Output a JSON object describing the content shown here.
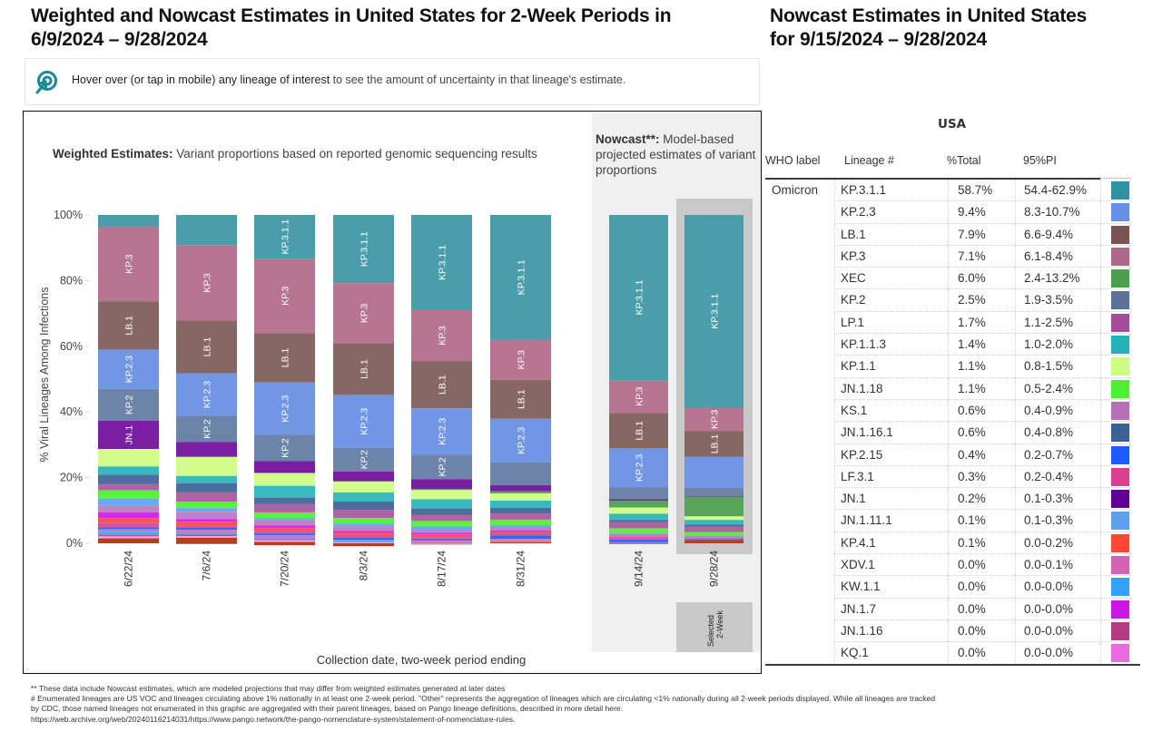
{
  "header": {
    "title_line1": "Weighted and Nowcast Estimates in United States for 2-Week Periods in",
    "title_line2": "6/9/2024 – 9/28/2024",
    "right_title_line1": "Nowcast Estimates in United States",
    "right_title_line2": "for 9/15/2024 – 9/28/2024"
  },
  "info": {
    "icon": "hover-target-icon",
    "bold_text": "Hover over (or tap in mobile) any lineage of interest",
    "text": " to see the amount of uncertainty in that lineage's estimate."
  },
  "panels": {
    "weighted_bold": "Weighted Estimates:",
    "weighted_text": " Variant proportions based on reported genomic sequencing results",
    "nowcast_bold": "Nowcast**:",
    "nowcast_text": " Model-based projected estimates of variant proportions",
    "selected_label_line1": "Selected",
    "selected_label_line2": "2-Week"
  },
  "colors": {
    "KP.3.1.1": "#4a9dab",
    "KP.3": "#b87591",
    "LB.1": "#866763",
    "KP.2.3": "#7196e6",
    "KP.2": "#6b84a8",
    "JN.1": "#7a1fa3",
    "XEC": "#57a55a",
    "KP.1.1": "#d2fc8c",
    "KP.1.1.3": "#38b9be",
    "JN.1.16.1": "#4a6e9e",
    "LP.1": "#ae64a0",
    "JN.1.18": "#5bf23f",
    "JN.1.11.1": "#6ba8ee",
    "KS.1": "#bf82c4",
    "JN.1.7": "#d62ae8",
    "KP.4.1": "#ff5548",
    "LF.3.1": "#e0509a",
    "KP.2.15": "#2e68ff",
    "XDV.1": "#d675b8",
    "KW.1.1": "#48aaff",
    "JN.1.16": "#c04f8c",
    "KQ.1": "#f0a8e8",
    "Other": "#b2401c"
  },
  "chart_data": {
    "type": "bar",
    "stacked": true,
    "title": "Weighted and Nowcast Estimates in United States for 2-Week Periods in 6/9/2024 – 9/28/2024",
    "xlabel": "Collection date, two-week period ending",
    "ylabel": "% Viral Lineages Among Infections",
    "ylim": [
      0,
      100
    ],
    "yticks": [
      "0%",
      "20%",
      "40%",
      "60%",
      "80%",
      "100%"
    ],
    "ytick_values": [
      0,
      20,
      40,
      60,
      80,
      100
    ],
    "stack_order": [
      "KP.3.1.1",
      "KP.3",
      "LB.1",
      "KP.2.3",
      "KP.2",
      "JN.1",
      "XEC",
      "KP.1.1",
      "KP.1.1.3",
      "JN.1.16.1",
      "LP.1",
      "JN.1.18",
      "JN.1.11.1",
      "KS.1",
      "JN.1.7",
      "KP.4.1",
      "LF.3.1",
      "KP.2.15",
      "XDV.1",
      "KW.1.1",
      "JN.1.16",
      "KQ.1",
      "Other"
    ],
    "categories": [
      "6/22/24",
      "7/6/24",
      "7/20/24",
      "8/3/24",
      "8/17/24",
      "8/31/24",
      "9/14/24",
      "9/28/24"
    ],
    "category_group": [
      "weighted",
      "weighted",
      "weighted",
      "weighted",
      "weighted",
      "weighted",
      "nowcast",
      "nowcast"
    ],
    "selected_category": "9/28/24",
    "segment_labels": [
      [
        "KP.3",
        "LB.1",
        "KP.2.3",
        "KP.2",
        "JN.1"
      ],
      [
        "KP.3",
        "LB.1",
        "KP.2.3",
        "KP.2"
      ],
      [
        "KP.3.1.1",
        "KP.3",
        "LB.1",
        "KP.2.3",
        "KP.2"
      ],
      [
        "KP.3.1.1",
        "KP.3",
        "LB.1",
        "KP.2.3",
        "KP.2"
      ],
      [
        "KP.3.1.1",
        "KP.3",
        "LB.1",
        "KP.2.3",
        "KP.2"
      ],
      [
        "KP.3.1.1",
        "KP.3",
        "LB.1",
        "KP.2.3"
      ],
      [
        "KP.3.1.1",
        "KP.3",
        "LB.1",
        "KP.2.3"
      ],
      [
        "KP.3.1.1",
        "KP.3",
        "LB.1"
      ]
    ],
    "series": [
      {
        "name": "KP.3.1.1",
        "values": [
          3.6,
          9.2,
          13.3,
          20.8,
          29.0,
          38.0,
          50.3,
          58.7
        ]
      },
      {
        "name": "KP.3",
        "values": [
          22.7,
          23.0,
          22.7,
          18.3,
          15.5,
          12.2,
          10.0,
          7.1
        ]
      },
      {
        "name": "LB.1",
        "values": [
          14.7,
          16.0,
          15.0,
          15.8,
          14.4,
          11.9,
          10.8,
          7.9
        ]
      },
      {
        "name": "KP.2.3",
        "values": [
          12.0,
          13.0,
          16.0,
          16.0,
          14.1,
          13.3,
          11.9,
          9.4
        ]
      },
      {
        "name": "KP.2",
        "values": [
          9.7,
          8.0,
          8.0,
          7.2,
          7.5,
          6.9,
          3.6,
          2.5
        ]
      },
      {
        "name": "JN.1",
        "values": [
          8.6,
          4.5,
          3.6,
          3.0,
          3.0,
          1.9,
          0.5,
          0.2
        ]
      },
      {
        "name": "XEC",
        "values": [
          0.0,
          0.0,
          0.0,
          0.1,
          0.3,
          0.6,
          2.0,
          6.0
        ]
      },
      {
        "name": "KP.1.1",
        "values": [
          5.3,
          5.8,
          3.9,
          3.3,
          2.8,
          2.2,
          1.9,
          1.1
        ]
      },
      {
        "name": "KP.1.1.3",
        "values": [
          2.5,
          2.2,
          3.6,
          2.8,
          2.8,
          2.2,
          1.9,
          1.4
        ]
      },
      {
        "name": "JN.1.16.1",
        "values": [
          2.8,
          2.8,
          2.0,
          2.5,
          1.9,
          1.7,
          0.6,
          0.6
        ]
      },
      {
        "name": "LP.1",
        "values": [
          2.0,
          2.8,
          2.5,
          2.5,
          1.9,
          1.9,
          2.0,
          1.7
        ]
      },
      {
        "name": "JN.1.18",
        "values": [
          2.5,
          2.0,
          1.7,
          1.7,
          1.7,
          1.7,
          1.4,
          1.1
        ]
      },
      {
        "name": "JN.1.11.1",
        "values": [
          2.2,
          1.1,
          0.6,
          0.8,
          1.1,
          0.8,
          0.3,
          0.1
        ]
      },
      {
        "name": "KS.1",
        "values": [
          2.0,
          2.2,
          1.7,
          1.4,
          0.8,
          0.8,
          0.8,
          0.6
        ]
      },
      {
        "name": "JN.1.7",
        "values": [
          1.7,
          0.8,
          0.8,
          0.5,
          0.5,
          0.5,
          0.2,
          0.0
        ]
      },
      {
        "name": "KP.4.1",
        "values": [
          1.4,
          1.1,
          0.8,
          0.8,
          0.8,
          0.5,
          0.2,
          0.1
        ]
      },
      {
        "name": "LF.3.1",
        "values": [
          1.4,
          0.8,
          0.8,
          0.8,
          0.6,
          0.5,
          0.4,
          0.3
        ]
      },
      {
        "name": "KP.2.15",
        "values": [
          0.6,
          0.6,
          0.6,
          0.6,
          0.5,
          1.1,
          0.9,
          0.4
        ]
      },
      {
        "name": "XDV.1",
        "values": [
          0.8,
          0.8,
          0.6,
          0.3,
          0.3,
          0.3,
          0.1,
          0.0
        ]
      },
      {
        "name": "KW.1.1",
        "values": [
          1.0,
          0.6,
          0.5,
          0.3,
          0.3,
          0.2,
          0.1,
          0.0
        ]
      },
      {
        "name": "JN.1.16",
        "values": [
          0.4,
          0.5,
          0.4,
          0.2,
          0.2,
          0.2,
          0.1,
          0.0
        ]
      },
      {
        "name": "KQ.1",
        "values": [
          0.6,
          0.5,
          0.5,
          0.3,
          0.2,
          0.2,
          0.1,
          0.0
        ]
      },
      {
        "name": "Other",
        "values": [
          1.5,
          1.9,
          1.0,
          0.9,
          0.1,
          0.4,
          0.1,
          0.8
        ]
      }
    ]
  },
  "table": {
    "region": "USA",
    "headers": {
      "who": "WHO label",
      "lineage": "Lineage #",
      "pct": "%Total",
      "pi": "95%PI"
    },
    "who_label": "Omicron",
    "rows": [
      {
        "lineage": "KP.3.1.1",
        "pct": "58.7%",
        "pi": "54.4-62.9%",
        "color": "#2e93a0"
      },
      {
        "lineage": "KP.2.3",
        "pct": "9.4%",
        "pi": "8.3-10.7%",
        "color": "#6890e8"
      },
      {
        "lineage": "LB.1",
        "pct": "7.9%",
        "pi": "6.6-9.4%",
        "color": "#7a5352"
      },
      {
        "lineage": "KP.3",
        "pct": "7.1%",
        "pi": "6.1-8.4%",
        "color": "#b0668a"
      },
      {
        "lineage": "XEC",
        "pct": "6.0%",
        "pi": "2.4-13.2%",
        "color": "#4aa04c"
      },
      {
        "lineage": "KP.2",
        "pct": "2.5%",
        "pi": "1.9-3.5%",
        "color": "#5a729c"
      },
      {
        "lineage": "LP.1",
        "pct": "1.7%",
        "pi": "1.1-2.5%",
        "color": "#a24f98"
      },
      {
        "lineage": "KP.1.1.3",
        "pct": "1.4%",
        "pi": "1.0-2.0%",
        "color": "#22b3b8"
      },
      {
        "lineage": "KP.1.1",
        "pct": "1.1%",
        "pi": "0.8-1.5%",
        "color": "#ccff80"
      },
      {
        "lineage": "JN.1.18",
        "pct": "1.1%",
        "pi": "0.5-2.4%",
        "color": "#4ef032"
      },
      {
        "lineage": "KS.1",
        "pct": "0.6%",
        "pi": "0.4-0.9%",
        "color": "#b670b8"
      },
      {
        "lineage": "JN.1.16.1",
        "pct": "0.6%",
        "pi": "0.4-0.8%",
        "color": "#3a6094"
      },
      {
        "lineage": "KP.2.15",
        "pct": "0.4%",
        "pi": "0.2-0.7%",
        "color": "#1a5cff"
      },
      {
        "lineage": "LF.3.1",
        "pct": "0.3%",
        "pi": "0.2-0.4%",
        "color": "#d8408f"
      },
      {
        "lineage": "JN.1",
        "pct": "0.2%",
        "pi": "0.1-0.3%",
        "color": "#5e0096"
      },
      {
        "lineage": "JN.1.11.1",
        "pct": "0.1%",
        "pi": "0.1-0.3%",
        "color": "#5ea0ee"
      },
      {
        "lineage": "KP.4.1",
        "pct": "0.1%",
        "pi": "0.0-0.2%",
        "color": "#ff4536"
      },
      {
        "lineage": "XDV.1",
        "pct": "0.0%",
        "pi": "0.0-0.1%",
        "color": "#d064b0"
      },
      {
        "lineage": "KW.1.1",
        "pct": "0.0%",
        "pi": "0.0-0.0%",
        "color": "#32a0ff"
      },
      {
        "lineage": "JN.1.7",
        "pct": "0.0%",
        "pi": "0.0-0.0%",
        "color": "#cc16e6"
      },
      {
        "lineage": "JN.1.16",
        "pct": "0.0%",
        "pi": "0.0-0.0%",
        "color": "#b43a82"
      },
      {
        "lineage": "KQ.1",
        "pct": "0.0%",
        "pi": "0.0-0.0%",
        "color": "#e86ce0"
      }
    ]
  },
  "footnotes": [
    "**     These data include Nowcast estimates, which are modeled projections that may differ from weighted estimates generated at later dates",
    "# Enumerated lineages are US VOC and lineages circulating above 1% nationally in at least one 2-week period. \"Other\" represents the aggregation of lineages which are circulating <1% nationally during all 2-week periods displayed.  While all lineages are tracked",
    "by CDC, those named lineages not enumerated in this graphic are aggregated with their parent lineages, based on Pango lineage definitions, described in more detail here:",
    "https://web.archive.org/web/20240116214031/https://www.pango.network/the-pango-nomenclature-system/statement-of-nomenclature-rules."
  ]
}
